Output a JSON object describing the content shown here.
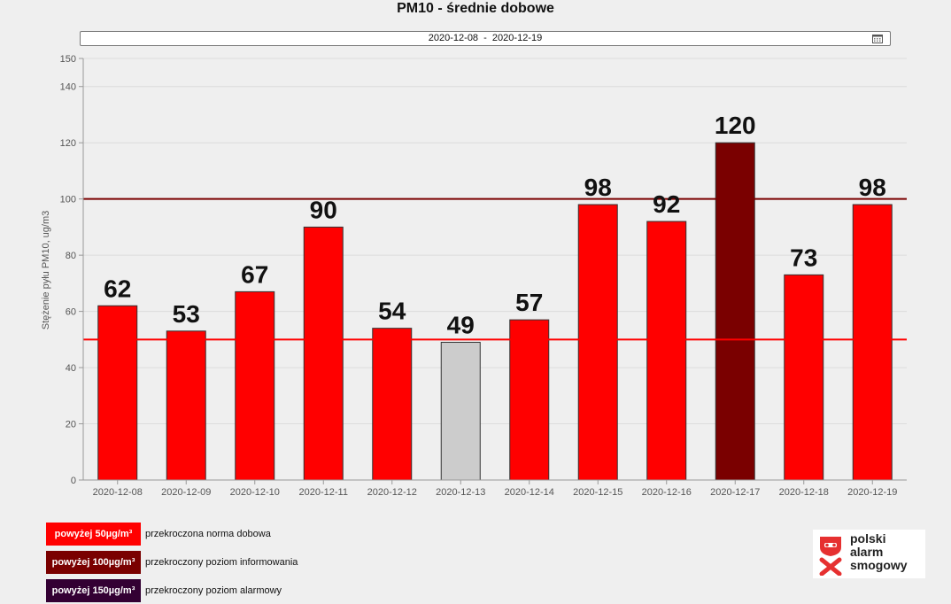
{
  "header": {
    "title": "PM10 - średnie dobowe"
  },
  "date_range": {
    "value": "2020-12-08  -  2020-12-19",
    "icon": "calendar-icon"
  },
  "chart_data": {
    "type": "bar",
    "title": "PM10 - średnie dobowe",
    "ylabel": "Stężenie pyłu PM10, ug/m3",
    "xlabel": "",
    "ylim": [
      0,
      150
    ],
    "yticks": [
      0,
      20,
      40,
      60,
      80,
      100,
      120,
      140,
      150
    ],
    "grid": true,
    "categories": [
      "2020-12-08",
      "2020-12-09",
      "2020-12-10",
      "2020-12-11",
      "2020-12-12",
      "2020-12-13",
      "2020-12-14",
      "2020-12-15",
      "2020-12-16",
      "2020-12-17",
      "2020-12-18",
      "2020-12-19"
    ],
    "values": [
      62,
      53,
      67,
      90,
      54,
      49,
      57,
      98,
      92,
      120,
      73,
      98
    ],
    "thresholds": [
      {
        "value": 50,
        "color": "#ff0000"
      },
      {
        "value": 100,
        "color": "#7a0000"
      }
    ],
    "colors": {
      "below": "#cccccc",
      "above50": "#ff0000",
      "above100": "#7a0000",
      "above150": "#330033"
    }
  },
  "legend": [
    {
      "badge": "powyżej 50µg/m³",
      "text": "przekroczona norma dobowa",
      "color": "#ff0000"
    },
    {
      "badge": "powyżej 100µg/m³",
      "text": "przekroczony poziom informowania",
      "color": "#7a0000"
    },
    {
      "badge": "powyżej 150µg/m³",
      "text": "przekroczony poziom alarmowy",
      "color": "#330033"
    }
  ],
  "logo": {
    "line1": "polski",
    "line2": "alarm",
    "line3": "smogowy",
    "icon": "polski-alarm-smogowy-logo"
  }
}
